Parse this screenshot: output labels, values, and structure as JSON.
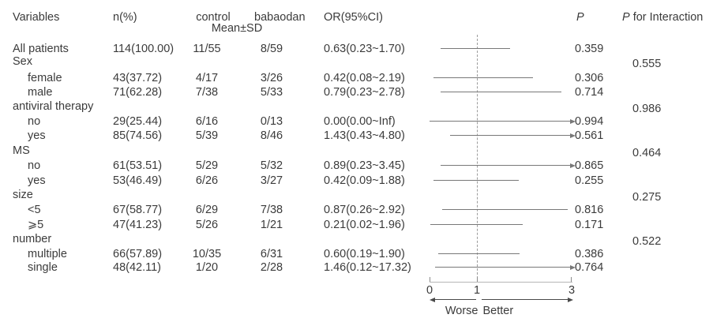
{
  "chart_data": {
    "type": "table",
    "subtype": "forest-plot",
    "title": "",
    "columns": {
      "variables": "Variables",
      "n_pct": "n(%)",
      "control": "control",
      "babaodan": "babaodan",
      "mean_sd": "Mean±SD",
      "or_ci": "OR(95%CI)",
      "p": "P",
      "p_interaction_italic": "P",
      "p_interaction_rest": " for Interaction"
    },
    "axis": {
      "xlim": [
        0,
        3
      ],
      "ticks": [
        "0",
        "1",
        "3"
      ],
      "tick_values": [
        0,
        1,
        3
      ],
      "ref_line": 1,
      "worse_label": "Worse",
      "better_label": "Better"
    },
    "rows": [
      {
        "label": "All patients",
        "indent": 0,
        "n": "114(100.00)",
        "control": "11/55",
        "babaodan": "8/59",
        "or": "0.63(0.23~1.70)",
        "ci": [
          0.23,
          1.7
        ],
        "arrow": false,
        "p": "0.359"
      },
      {
        "label": "Sex",
        "indent": 0,
        "p_interaction": "0.555"
      },
      {
        "label": "female",
        "indent": 1,
        "n": "43(37.72)",
        "control": "4/17",
        "babaodan": "3/26",
        "or": "0.42(0.08~2.19)",
        "ci": [
          0.08,
          2.19
        ],
        "arrow": false,
        "p": "0.306"
      },
      {
        "label": "male",
        "indent": 1,
        "n": "71(62.28)",
        "control": "7/38",
        "babaodan": "5/33",
        "or": "0.79(0.23~2.78)",
        "ci": [
          0.23,
          2.78
        ],
        "arrow": false,
        "p": "0.714"
      },
      {
        "label": "antiviral therapy",
        "indent": 0,
        "p_interaction": "0.986"
      },
      {
        "label": "no",
        "indent": 1,
        "n": "29(25.44)",
        "control": "6/16",
        "babaodan": "0/13",
        "or": "0.00(0.00~Inf)",
        "ci": [
          0.0,
          null
        ],
        "arrow": true,
        "p": "0.994"
      },
      {
        "label": "yes",
        "indent": 1,
        "n": "85(74.56)",
        "control": "5/39",
        "babaodan": "8/46",
        "or": "1.43(0.43~4.80)",
        "ci": [
          0.43,
          4.8
        ],
        "arrow": true,
        "p": "0.561"
      },
      {
        "label": "MS",
        "indent": 0,
        "p_interaction": "0.464"
      },
      {
        "label": "no",
        "indent": 1,
        "n": "61(53.51)",
        "control": "5/29",
        "babaodan": "5/32",
        "or": "0.89(0.23~3.45)",
        "ci": [
          0.23,
          3.45
        ],
        "arrow": true,
        "p": "0.865"
      },
      {
        "label": "yes",
        "indent": 1,
        "n": "53(46.49)",
        "control": "6/26",
        "babaodan": "3/27",
        "or": "0.42(0.09~1.88)",
        "ci": [
          0.09,
          1.88
        ],
        "arrow": false,
        "p": "0.255"
      },
      {
        "label": "size",
        "indent": 0,
        "p_interaction": "0.275"
      },
      {
        "label": "<5",
        "indent": 1,
        "n": "67(58.77)",
        "control": "6/29",
        "babaodan": "7/38",
        "or": "0.87(0.26~2.92)",
        "ci": [
          0.26,
          2.92
        ],
        "arrow": false,
        "p": "0.816"
      },
      {
        "label": "⩾5",
        "indent": 1,
        "n": "47(41.23)",
        "control": "5/26",
        "babaodan": "1/21",
        "or": "0.21(0.02~1.96)",
        "ci": [
          0.02,
          1.96
        ],
        "arrow": false,
        "p": "0.171"
      },
      {
        "label": "number",
        "indent": 0,
        "p_interaction": "0.522"
      },
      {
        "label": "multiple",
        "indent": 1,
        "n": "66(57.89)",
        "control": "10/35",
        "babaodan": "6/31",
        "or": "0.60(0.19~1.90)",
        "ci": [
          0.19,
          1.9
        ],
        "arrow": false,
        "p": "0.386"
      },
      {
        "label": "single",
        "indent": 1,
        "n": "48(42.11)",
        "control": "1/20",
        "babaodan": "2/28",
        "or": "1.46(0.12~17.32)",
        "ci": [
          0.12,
          17.32
        ],
        "arrow": true,
        "p": "0.764"
      }
    ],
    "colors": {
      "text": "#3b3b3b",
      "ci_line": "#787878",
      "reference_line": "#9b9b9b"
    }
  }
}
